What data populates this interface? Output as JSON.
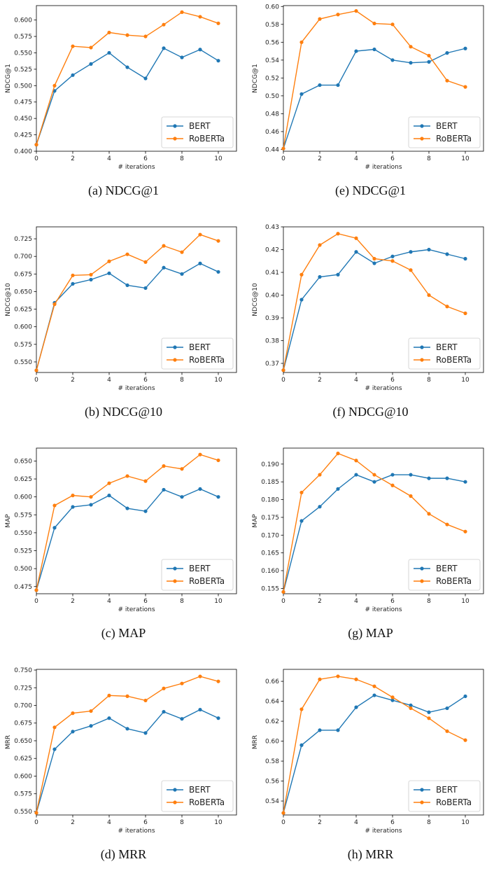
{
  "colors": {
    "bert": "#1f77b4",
    "roberta": "#ff7f0e",
    "axis": "#000000",
    "legend_border": "#cccccc"
  },
  "chart_data": [
    {
      "type": "line",
      "caption": "(a) NDCG@1",
      "xlabel": "# iterations",
      "ylabel": "NDCG@1",
      "x": [
        0,
        1,
        2,
        3,
        4,
        5,
        6,
        7,
        8,
        9,
        10
      ],
      "xlim": [
        0,
        11
      ],
      "xticks": [
        0,
        2,
        4,
        6,
        8,
        10
      ],
      "ylim": [
        0.4,
        0.622
      ],
      "yticks": [
        "0.400",
        "0.425",
        "0.450",
        "0.475",
        "0.500",
        "0.525",
        "0.550",
        "0.575",
        "0.600"
      ],
      "legend": "lower-right",
      "grid": false,
      "series": [
        {
          "name": "BERT",
          "color": "#1f77b4",
          "values": [
            0.41,
            0.492,
            0.516,
            0.533,
            0.55,
            0.528,
            0.511,
            0.557,
            0.543,
            0.555,
            0.538
          ]
        },
        {
          "name": "RoBERTa",
          "color": "#ff7f0e",
          "values": [
            0.41,
            0.5,
            0.56,
            0.558,
            0.581,
            0.577,
            0.575,
            0.593,
            0.612,
            0.605,
            0.595
          ]
        }
      ]
    },
    {
      "type": "line",
      "caption": "(e) NDCG@1",
      "xlabel": "# iterations",
      "ylabel": "NDCG@1",
      "x": [
        0,
        1,
        2,
        3,
        4,
        5,
        6,
        7,
        8,
        9,
        10
      ],
      "xlim": [
        0,
        11
      ],
      "xticks": [
        0,
        2,
        4,
        6,
        8,
        10
      ],
      "ylim": [
        0.438,
        0.601
      ],
      "yticks": [
        "0.44",
        "0.46",
        "0.48",
        "0.50",
        "0.52",
        "0.54",
        "0.56",
        "0.58",
        "0.60"
      ],
      "legend": "lower-right",
      "grid": false,
      "series": [
        {
          "name": "BERT",
          "color": "#1f77b4",
          "values": [
            0.441,
            0.502,
            0.512,
            0.512,
            0.55,
            0.552,
            0.54,
            0.537,
            0.538,
            0.548,
            0.553
          ]
        },
        {
          "name": "RoBERTa",
          "color": "#ff7f0e",
          "values": [
            0.441,
            0.56,
            0.586,
            0.591,
            0.595,
            0.581,
            0.58,
            0.555,
            0.545,
            0.517,
            0.51
          ]
        }
      ]
    },
    {
      "type": "line",
      "caption": "(b) NDCG@10",
      "xlabel": "# iterations",
      "ylabel": "NDCG@10",
      "x": [
        0,
        1,
        2,
        3,
        4,
        5,
        6,
        7,
        8,
        9,
        10
      ],
      "xlim": [
        0,
        11
      ],
      "xticks": [
        0,
        2,
        4,
        6,
        8,
        10
      ],
      "ylim": [
        0.535,
        0.742
      ],
      "yticks": [
        "0.550",
        "0.575",
        "0.600",
        "0.625",
        "0.650",
        "0.675",
        "0.700",
        "0.725"
      ],
      "legend": "lower-right",
      "grid": false,
      "series": [
        {
          "name": "BERT",
          "color": "#1f77b4",
          "values": [
            0.538,
            0.634,
            0.661,
            0.667,
            0.676,
            0.659,
            0.655,
            0.684,
            0.675,
            0.69,
            0.678
          ]
        },
        {
          "name": "RoBERTa",
          "color": "#ff7f0e",
          "values": [
            0.538,
            0.632,
            0.673,
            0.674,
            0.693,
            0.703,
            0.692,
            0.715,
            0.706,
            0.731,
            0.722
          ]
        }
      ]
    },
    {
      "type": "line",
      "caption": "(f) NDCG@10",
      "xlabel": "# iterations",
      "ylabel": "NDCG@10",
      "x": [
        0,
        1,
        2,
        3,
        4,
        5,
        6,
        7,
        8,
        9,
        10
      ],
      "xlim": [
        0,
        11
      ],
      "xticks": [
        0,
        2,
        4,
        6,
        8,
        10
      ],
      "ylim": [
        0.366,
        0.43
      ],
      "yticks": [
        "0.37",
        "0.38",
        "0.39",
        "0.40",
        "0.41",
        "0.42",
        "0.43"
      ],
      "legend": "lower-right",
      "grid": false,
      "series": [
        {
          "name": "BERT",
          "color": "#1f77b4",
          "values": [
            0.367,
            0.398,
            0.408,
            0.409,
            0.419,
            0.414,
            0.417,
            0.419,
            0.42,
            0.418,
            0.416
          ]
        },
        {
          "name": "RoBERTa",
          "color": "#ff7f0e",
          "values": [
            0.367,
            0.409,
            0.422,
            0.427,
            0.425,
            0.416,
            0.415,
            0.411,
            0.4,
            0.395,
            0.392
          ]
        }
      ]
    },
    {
      "type": "line",
      "caption": "(c) MAP",
      "xlabel": "# iterations",
      "ylabel": "MAP",
      "x": [
        0,
        1,
        2,
        3,
        4,
        5,
        6,
        7,
        8,
        9,
        10
      ],
      "xlim": [
        0,
        11
      ],
      "xticks": [
        0,
        2,
        4,
        6,
        8,
        10
      ],
      "ylim": [
        0.465,
        0.668
      ],
      "yticks": [
        "0.475",
        "0.500",
        "0.525",
        "0.550",
        "0.575",
        "0.600",
        "0.625",
        "0.650"
      ],
      "legend": "lower-right",
      "grid": false,
      "series": [
        {
          "name": "BERT",
          "color": "#1f77b4",
          "values": [
            0.47,
            0.557,
            0.586,
            0.589,
            0.602,
            0.584,
            0.58,
            0.61,
            0.6,
            0.611,
            0.6
          ]
        },
        {
          "name": "RoBERTa",
          "color": "#ff7f0e",
          "values": [
            0.47,
            0.588,
            0.602,
            0.6,
            0.619,
            0.629,
            0.622,
            0.643,
            0.639,
            0.659,
            0.651
          ]
        }
      ]
    },
    {
      "type": "line",
      "caption": "(g) MAP",
      "xlabel": "# iterations",
      "ylabel": "MAP",
      "x": [
        0,
        1,
        2,
        3,
        4,
        5,
        6,
        7,
        8,
        9,
        10
      ],
      "xlim": [
        0,
        11
      ],
      "xticks": [
        0,
        2,
        4,
        6,
        8,
        10
      ],
      "ylim": [
        0.1535,
        0.1945
      ],
      "yticks": [
        "0.155",
        "0.160",
        "0.165",
        "0.170",
        "0.175",
        "0.180",
        "0.185",
        "0.190"
      ],
      "legend": "lower-right",
      "grid": false,
      "series": [
        {
          "name": "BERT",
          "color": "#1f77b4",
          "values": [
            0.154,
            0.174,
            0.178,
            0.183,
            0.187,
            0.185,
            0.187,
            0.187,
            0.186,
            0.186,
            0.185
          ]
        },
        {
          "name": "RoBERTa",
          "color": "#ff7f0e",
          "values": [
            0.154,
            0.182,
            0.187,
            0.193,
            0.191,
            0.187,
            0.184,
            0.181,
            0.176,
            0.173,
            0.171
          ]
        }
      ]
    },
    {
      "type": "line",
      "caption": "(d) MRR",
      "xlabel": "# iterations",
      "ylabel": "MRR",
      "x": [
        0,
        1,
        2,
        3,
        4,
        5,
        6,
        7,
        8,
        9,
        10
      ],
      "xlim": [
        0,
        11
      ],
      "xticks": [
        0,
        2,
        4,
        6,
        8,
        10
      ],
      "ylim": [
        0.545,
        0.751
      ],
      "yticks": [
        "0.550",
        "0.575",
        "0.600",
        "0.625",
        "0.650",
        "0.675",
        "0.700",
        "0.725",
        "0.750"
      ],
      "legend": "lower-right",
      "grid": false,
      "series": [
        {
          "name": "BERT",
          "color": "#1f77b4",
          "values": [
            0.548,
            0.638,
            0.663,
            0.671,
            0.682,
            0.667,
            0.661,
            0.691,
            0.681,
            0.694,
            0.682
          ]
        },
        {
          "name": "RoBERTa",
          "color": "#ff7f0e",
          "values": [
            0.548,
            0.669,
            0.689,
            0.692,
            0.714,
            0.713,
            0.707,
            0.724,
            0.731,
            0.741,
            0.734
          ]
        }
      ]
    },
    {
      "type": "line",
      "caption": "(h) MRR",
      "xlabel": "# iterations",
      "ylabel": "MRR",
      "x": [
        0,
        1,
        2,
        3,
        4,
        5,
        6,
        7,
        8,
        9,
        10
      ],
      "xlim": [
        0,
        11
      ],
      "xticks": [
        0,
        2,
        4,
        6,
        8,
        10
      ],
      "ylim": [
        0.526,
        0.672
      ],
      "yticks": [
        "0.54",
        "0.56",
        "0.58",
        "0.60",
        "0.62",
        "0.64",
        "0.66"
      ],
      "legend": "lower-right",
      "grid": false,
      "series": [
        {
          "name": "BERT",
          "color": "#1f77b4",
          "values": [
            0.528,
            0.596,
            0.611,
            0.611,
            0.634,
            0.646,
            0.641,
            0.636,
            0.629,
            0.633,
            0.645
          ]
        },
        {
          "name": "RoBERTa",
          "color": "#ff7f0e",
          "values": [
            0.528,
            0.632,
            0.662,
            0.665,
            0.662,
            0.655,
            0.644,
            0.633,
            0.623,
            0.61,
            0.601
          ]
        }
      ]
    }
  ]
}
